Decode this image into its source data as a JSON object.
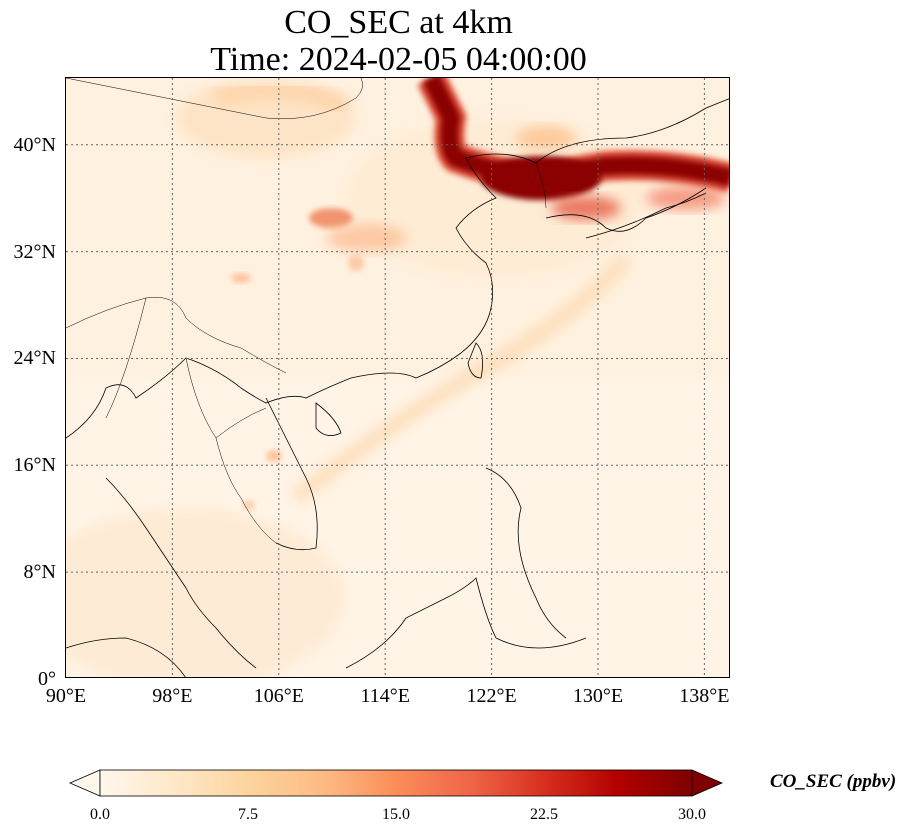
{
  "title_line1": "CO_SEC at 4km",
  "title_line2": "Time: 2024-02-05 04:00:00",
  "map": {
    "lon_range": [
      90,
      140
    ],
    "lat_range": [
      0,
      45
    ],
    "x_ticks": [
      {
        "value": 90,
        "label": "90°E"
      },
      {
        "value": 98,
        "label": "98°E"
      },
      {
        "value": 106,
        "label": "106°E"
      },
      {
        "value": 114,
        "label": "114°E"
      },
      {
        "value": 122,
        "label": "122°E"
      },
      {
        "value": 130,
        "label": "130°E"
      },
      {
        "value": 138,
        "label": "138°E"
      }
    ],
    "y_ticks": [
      {
        "value": 0,
        "label": "0°"
      },
      {
        "value": 8,
        "label": "8°N"
      },
      {
        "value": 16,
        "label": "16°N"
      },
      {
        "value": 24,
        "label": "24°N"
      },
      {
        "value": 32,
        "label": "32°N"
      },
      {
        "value": 40,
        "label": "40°N"
      }
    ],
    "gridlines": "dotted",
    "colormap": "OrRd",
    "features": [
      "coastlines",
      "country borders"
    ]
  },
  "colorbar": {
    "label": "CO_SEC (ppbv)",
    "min": 0.0,
    "max": 30.0,
    "extend": "both",
    "ticks": [
      "0.0",
      "7.5",
      "15.0",
      "22.5",
      "30.0"
    ],
    "colors": [
      "#fff7ec",
      "#fee8c8",
      "#fdd49e",
      "#fdbb84",
      "#fc8d59",
      "#ef6548",
      "#d7301f",
      "#b30000",
      "#7f0000"
    ]
  }
}
